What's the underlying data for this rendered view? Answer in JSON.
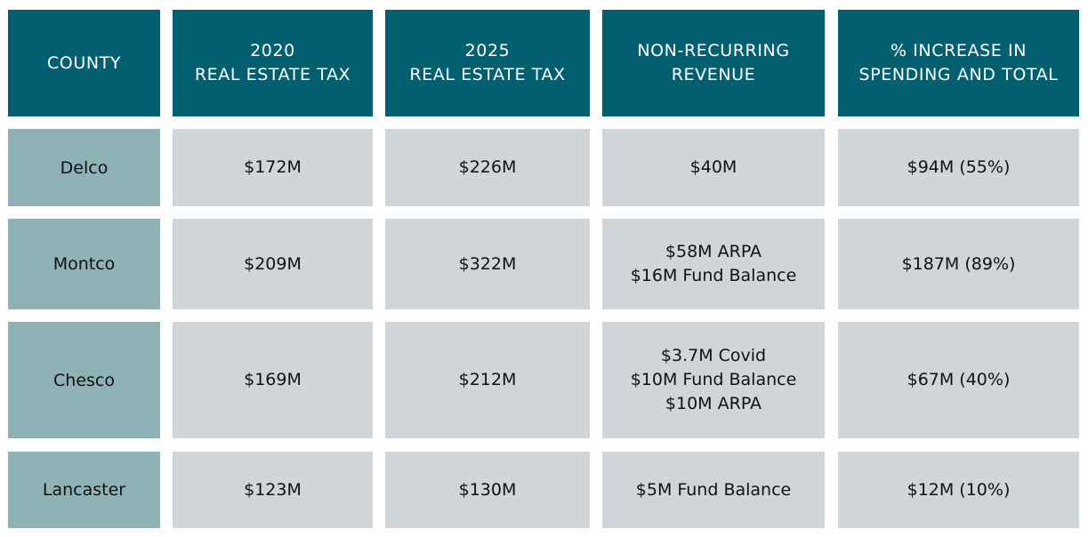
{
  "chart_data": {
    "type": "table",
    "columns": [
      [
        "COUNTY"
      ],
      [
        "2020",
        "REAL ESTATE TAX"
      ],
      [
        "2025",
        "REAL ESTATE TAX"
      ],
      [
        "NON-RECURRING",
        "REVENUE"
      ],
      [
        "% INCREASE IN",
        "SPENDING AND TOTAL"
      ]
    ],
    "rows": [
      {
        "county": "Delco",
        "tax_2020": "$172M",
        "tax_2025": "$226M",
        "non_recurring": [
          "$40M"
        ],
        "increase": "$94M (55%)"
      },
      {
        "county": "Montco",
        "tax_2020": "$209M",
        "tax_2025": "$322M",
        "non_recurring": [
          "$58M ARPA",
          "$16M Fund Balance"
        ],
        "increase": "$187M (89%)"
      },
      {
        "county": "Chesco",
        "tax_2020": "$169M",
        "tax_2025": "$212M",
        "non_recurring": [
          "$3.7M Covid",
          "$10M Fund Balance",
          "$10M ARPA"
        ],
        "increase": "$67M (40%)"
      },
      {
        "county": "Lancaster",
        "tax_2020": "$123M",
        "tax_2025": "$130M",
        "non_recurring": [
          "$5M Fund Balance"
        ],
        "increase": "$12M (10%)"
      }
    ]
  },
  "colors": {
    "header_bg": "#025f6f",
    "header_text": "#ffffff",
    "county_bg": "#8fb2b6",
    "data_bg": "#cfd5d8"
  }
}
